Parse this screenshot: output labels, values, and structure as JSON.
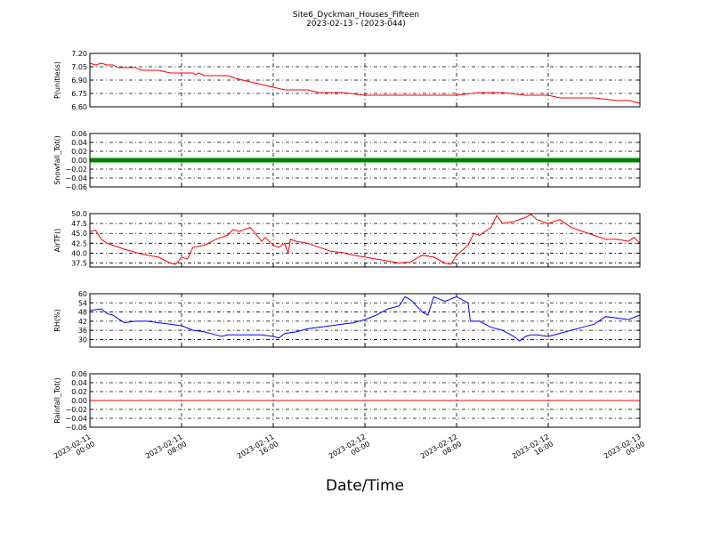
{
  "title": {
    "line1": "Site6_Dyckman_Houses_Fifteen",
    "line2": "2023-02-13 - (2023-044)"
  },
  "xlabel": "Date/Time",
  "x_ticks": [
    [
      "2023-02-11",
      "00:00"
    ],
    [
      "2023-02-11",
      "08:00"
    ],
    [
      "2023-02-11",
      "16:00"
    ],
    [
      "2023-02-12",
      "00:00"
    ],
    [
      "2023-02-12",
      "08:00"
    ],
    [
      "2023-02-12",
      "16:00"
    ],
    [
      "2023-02-13",
      "00:00"
    ]
  ],
  "chart_data": [
    {
      "type": "line",
      "ylabel": "P(unitless)",
      "ylim": [
        6.6,
        7.2
      ],
      "yticks": [
        "7.20",
        "7.05",
        "6.90",
        "6.75",
        "6.60"
      ],
      "grid": true,
      "color": "#ff0000",
      "x_hours": [
        0,
        0.5,
        1,
        1.5,
        2,
        2.5,
        3,
        4,
        4.5,
        5,
        6,
        7,
        8,
        9,
        9.2,
        9.5,
        10,
        11,
        12,
        13,
        14,
        15,
        16,
        17,
        18,
        19,
        20,
        21,
        22,
        24,
        26,
        28,
        30,
        32,
        34,
        35,
        36,
        38,
        40,
        41,
        42,
        44,
        46,
        47,
        48
      ],
      "values": [
        7.09,
        7.07,
        7.09,
        7.07,
        7.07,
        7.04,
        7.04,
        7.04,
        7.01,
        7.01,
        7.01,
        6.98,
        6.98,
        6.98,
        6.96,
        6.98,
        6.95,
        6.95,
        6.95,
        6.91,
        6.88,
        6.85,
        6.82,
        6.79,
        6.79,
        6.79,
        6.76,
        6.76,
        6.76,
        6.73,
        6.73,
        6.73,
        6.73,
        6.73,
        6.76,
        6.76,
        6.76,
        6.73,
        6.73,
        6.7,
        6.7,
        6.7,
        6.67,
        6.67,
        6.64
      ]
    },
    {
      "type": "line",
      "ylabel": "Snowfall_Tot()",
      "ylim": [
        -0.06,
        0.06
      ],
      "yticks": [
        "0.06",
        "0.04",
        "0.02",
        "0.00",
        "−0.02",
        "−0.04",
        "−0.06"
      ],
      "grid": true,
      "color": "#008000",
      "x_hours": [
        0,
        48
      ],
      "values": [
        0.0,
        0.0
      ]
    },
    {
      "type": "line",
      "ylabel": "AirTF()",
      "ylim": [
        36.5,
        50.0
      ],
      "yticks": [
        "50.0",
        "47.5",
        "45.0",
        "42.5",
        "40.0",
        "37.5"
      ],
      "grid": true,
      "color": "#ff0000",
      "x_hours": [
        0,
        0.5,
        1,
        1.5,
        2,
        3,
        4,
        5,
        6,
        7,
        7.5,
        8,
        8.5,
        9,
        10,
        11,
        12,
        12.5,
        13,
        14,
        15,
        15.3,
        16,
        16.5,
        17,
        17.3,
        17.5,
        18,
        19,
        20,
        21,
        22,
        23,
        24,
        25,
        26,
        27,
        28,
        29,
        30,
        31,
        31.5,
        32,
        33,
        33.5,
        34,
        35,
        35.5,
        36,
        37,
        38,
        38.5,
        39,
        40,
        41,
        42,
        43,
        44,
        45,
        46,
        47,
        47.5,
        48
      ],
      "values": [
        45.5,
        45.8,
        43.5,
        42.5,
        42.0,
        41.0,
        40.2,
        39.5,
        39.0,
        37.5,
        37.2,
        39.0,
        38.5,
        41.5,
        42.0,
        43.5,
        44.5,
        46.0,
        45.5,
        46.5,
        43.0,
        44.0,
        42.0,
        41.5,
        42.5,
        40.0,
        43.5,
        43.0,
        42.5,
        41.5,
        40.5,
        40.2,
        39.5,
        39.0,
        38.5,
        38.0,
        37.5,
        37.8,
        39.5,
        39.0,
        37.5,
        37.2,
        39.5,
        42.0,
        45.0,
        44.5,
        46.5,
        49.5,
        47.5,
        48.0,
        49.0,
        49.8,
        48.5,
        47.5,
        48.5,
        46.5,
        45.5,
        44.5,
        43.5,
        43.5,
        43.0,
        44.0,
        42.5
      ]
    },
    {
      "type": "line",
      "ylabel": "RH(%)",
      "ylim": [
        25,
        60
      ],
      "yticks": [
        "60",
        "54",
        "48",
        "42",
        "36",
        "30"
      ],
      "grid": true,
      "color": "#0000ff",
      "x_hours": [
        0,
        1,
        1.5,
        2,
        3,
        4,
        5,
        6,
        7,
        8,
        9,
        10,
        11,
        11.5,
        12,
        13,
        14,
        15,
        16,
        16.5,
        17,
        18,
        19,
        20,
        21,
        22,
        23,
        24,
        25,
        26,
        27,
        27.5,
        28,
        29,
        29.5,
        30,
        31,
        32,
        33,
        33.2,
        34,
        35,
        36,
        37,
        37.5,
        38,
        38.5,
        39,
        40,
        41,
        42,
        43,
        44,
        45,
        46,
        47,
        48
      ],
      "values": [
        49,
        50,
        47,
        46,
        41,
        42,
        42,
        41,
        40,
        39,
        36,
        35,
        33,
        32,
        33,
        33,
        33,
        33,
        32,
        31,
        34,
        35,
        37,
        38,
        39,
        40,
        41,
        43,
        46,
        50,
        52,
        58,
        56,
        48,
        46,
        58,
        55,
        58,
        54,
        42,
        42,
        38,
        36,
        32,
        29,
        32,
        33,
        33,
        32,
        34,
        36,
        38,
        40,
        45,
        44,
        43,
        46
      ]
    },
    {
      "type": "line",
      "ylabel": "Rainfall_Tot()",
      "ylim": [
        -0.06,
        0.06
      ],
      "yticks": [
        "0.06",
        "0.04",
        "0.02",
        "0.00",
        "−0.02",
        "−0.04",
        "−0.06"
      ],
      "grid": true,
      "color": "#ff0000",
      "x_hours": [
        0,
        48
      ],
      "values": [
        0.0,
        0.0
      ]
    }
  ]
}
